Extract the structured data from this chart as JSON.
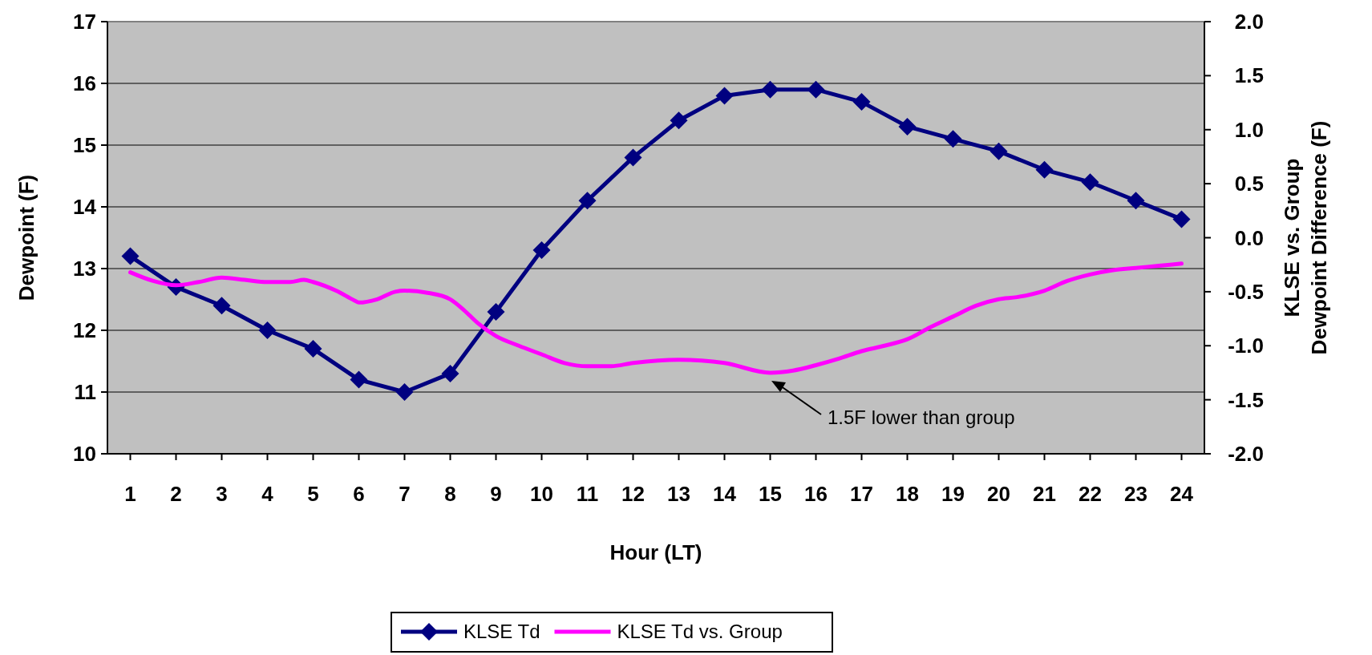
{
  "chart_data": {
    "type": "line",
    "xlabel": "Hour (LT)",
    "ylabel": "Dewpoint (F)",
    "y2label": "KLSE vs. Group\nDewpoint Difference (F)",
    "x": [
      1,
      2,
      3,
      4,
      5,
      6,
      7,
      8,
      9,
      10,
      11,
      12,
      13,
      14,
      15,
      16,
      17,
      18,
      19,
      20,
      21,
      22,
      23,
      24
    ],
    "xlim": [
      0.5,
      24.5
    ],
    "xticks": [
      1,
      2,
      3,
      4,
      5,
      6,
      7,
      8,
      9,
      10,
      11,
      12,
      13,
      14,
      15,
      16,
      17,
      18,
      19,
      20,
      21,
      22,
      23,
      24
    ],
    "ylim": [
      10,
      17
    ],
    "yticks": [
      10,
      11,
      12,
      13,
      14,
      15,
      16,
      17
    ],
    "y2lim": [
      -2,
      2
    ],
    "y2ticks": [
      {
        "value": -2,
        "label": "-2.0"
      },
      {
        "value": -1.5,
        "label": "-1.5"
      },
      {
        "value": -1,
        "label": "-1.0"
      },
      {
        "value": -0.5,
        "label": "-0.5"
      },
      {
        "value": 0,
        "label": "0.0"
      },
      {
        "value": 0.5,
        "label": "0.5"
      },
      {
        "value": 1,
        "label": "1.0"
      },
      {
        "value": 1.5,
        "label": "1.5"
      },
      {
        "value": 2,
        "label": "2.0"
      }
    ],
    "grid": "y",
    "legend": "bottom",
    "line_style": "solid",
    "series": [
      {
        "name": "KLSE Td",
        "color": "#000080",
        "marker": "diamond",
        "values": [
          13.2,
          12.7,
          12.4,
          12.0,
          11.7,
          11.2,
          11.0,
          11.3,
          12.3,
          13.3,
          14.1,
          14.8,
          15.4,
          15.8,
          15.9,
          15.9,
          15.7,
          15.3,
          15.1,
          14.9,
          14.6,
          14.4,
          14.1,
          13.8
        ]
      },
      {
        "name": "KLSE Td vs. Group",
        "color": "#ff00ff",
        "marker": "none",
        "axis": "y2",
        "x": [
          1,
          1.5,
          2,
          2.5,
          3,
          3.5,
          4,
          4.5,
          4.8,
          5,
          5.5,
          5.9,
          6,
          6.4,
          6.8,
          7,
          7.5,
          8,
          8.3,
          8.6,
          9,
          9.5,
          10,
          10.5,
          11,
          11.5,
          12,
          13,
          14,
          15,
          15.5,
          16,
          16.5,
          17,
          17.5,
          18,
          18.5,
          19,
          19.5,
          20,
          20.4,
          21,
          21.5,
          22,
          22.5,
          23,
          23.5,
          24
        ],
        "values": [
          -0.32,
          -0.4,
          -0.44,
          -0.41,
          -0.37,
          -0.39,
          -0.41,
          -0.41,
          -0.39,
          -0.41,
          -0.49,
          -0.58,
          -0.6,
          -0.57,
          -0.5,
          -0.49,
          -0.51,
          -0.57,
          -0.67,
          -0.79,
          -0.91,
          -1.0,
          -1.08,
          -1.16,
          -1.19,
          -1.19,
          -1.16,
          -1.13,
          -1.16,
          -1.25,
          -1.23,
          -1.18,
          -1.12,
          -1.05,
          -1.0,
          -0.94,
          -0.83,
          -0.73,
          -0.63,
          -0.57,
          -0.55,
          -0.49,
          -0.4,
          -0.34,
          -0.3,
          -0.28,
          -0.26,
          -0.24
        ]
      }
    ],
    "annotations": [
      "1.5F lower than group"
    ]
  }
}
